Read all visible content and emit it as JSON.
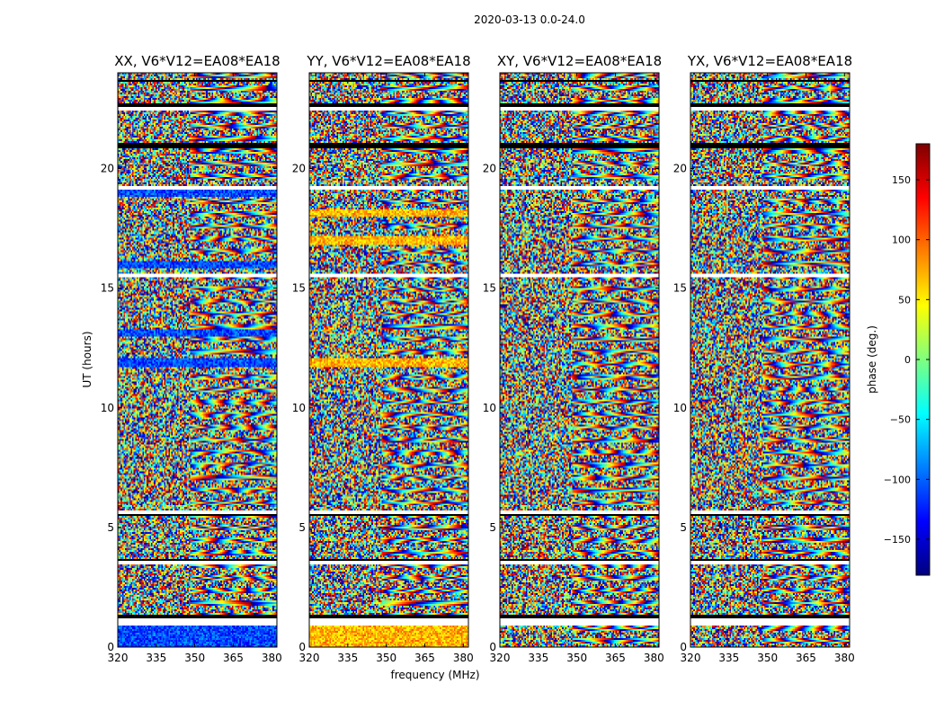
{
  "figure": {
    "suptitle": "2020-03-13 0.0-24.0"
  },
  "chart_data": {
    "type": "heatmap",
    "xlabel": "frequency (MHz)",
    "ylabel": "UT (hours)",
    "xlim": [
      320,
      382
    ],
    "ylim": [
      0,
      24
    ],
    "xticks": [
      320,
      335,
      350,
      365,
      380
    ],
    "yticks": [
      0,
      5,
      10,
      15,
      20
    ],
    "panels": [
      {
        "title": "XX, V6*V12=EA08*EA18",
        "bias": -110,
        "bias_rows": [
          [
            0.0,
            0.9
          ],
          [
            11.7,
            12.1
          ],
          [
            15.8,
            16.1
          ],
          [
            18.8,
            19.3
          ],
          [
            13.0,
            13.3
          ]
        ]
      },
      {
        "title": "YY, V6*V12=EA08*EA18",
        "bias": 70,
        "bias_rows": [
          [
            0.0,
            0.9
          ],
          [
            11.7,
            12.1
          ],
          [
            16.8,
            17.2
          ],
          [
            18.0,
            18.3
          ]
        ]
      },
      {
        "title": "XY, V6*V12=EA08*EA18",
        "bias": null,
        "bias_rows": []
      },
      {
        "title": "YX, V6*V12=EA08*EA18",
        "bias": null,
        "bias_rows": []
      }
    ],
    "blank_rows": [
      [
        0.9,
        1.2
      ],
      [
        3.45,
        3.6
      ],
      [
        5.55,
        5.7
      ],
      [
        19.15,
        19.3
      ],
      [
        15.45,
        15.6
      ],
      [
        22.4,
        22.55
      ]
    ],
    "dark_rows": [
      [
        1.2,
        1.35
      ],
      [
        3.6,
        3.7
      ],
      [
        5.45,
        5.55
      ],
      [
        20.85,
        21.1
      ],
      [
        22.6,
        22.75
      ],
      [
        23.6,
        23.7
      ]
    ],
    "colorbar": {
      "label": "phase (deg.)",
      "range": [
        -180,
        180
      ],
      "ticks": [
        150,
        100,
        50,
        0,
        -50,
        -100,
        -150
      ],
      "tick_labels": [
        "150",
        "100",
        "50",
        "0",
        "−50",
        "−100",
        "−150"
      ],
      "colormap": [
        "#00007f",
        "#0000ff",
        "#007fff",
        "#00ffff",
        "#7fff7f",
        "#ffff00",
        "#ff7f00",
        "#ff0000",
        "#7f0000"
      ]
    }
  }
}
